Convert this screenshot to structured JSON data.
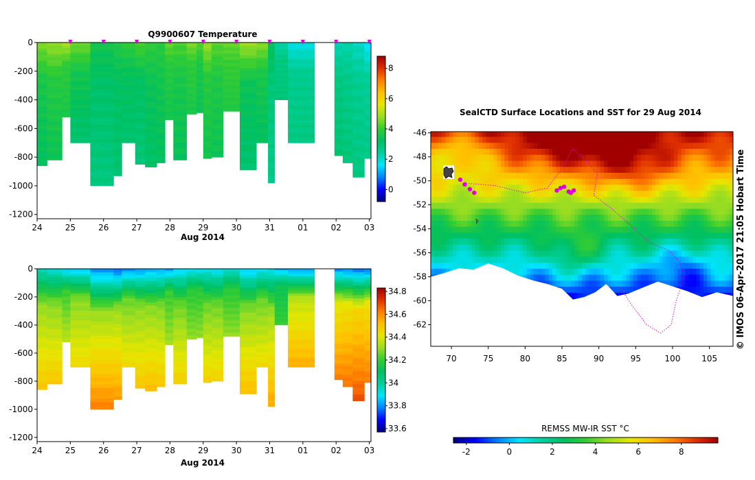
{
  "colors": {
    "jet": [
      "#00007f",
      "#0000ff",
      "#0080ff",
      "#00e5ff",
      "#00d0a0",
      "#00c060",
      "#33cc33",
      "#99dd22",
      "#e6e600",
      "#ffc000",
      "#ff7f00",
      "#e03000",
      "#a00000"
    ],
    "profile_marker": "#e000e0",
    "track": "#e000e0",
    "land": "#ffffff"
  },
  "chart_data": [
    {
      "type": "heatmap",
      "title": "Q9900607  Temperature",
      "xlabel": "Aug 2014",
      "ylabel": "",
      "x_ticks": [
        "24",
        "25",
        "26",
        "27",
        "28",
        "29",
        "30",
        "31",
        "01",
        "02",
        "03"
      ],
      "y_ticks": [
        "0",
        "-200",
        "-400",
        "-600",
        "-800",
        "-1000",
        "-1200"
      ],
      "ylim": [
        -1230,
        0
      ],
      "xlim": [
        24,
        34.05
      ],
      "colorbar": {
        "min": -0.8,
        "max": 8.8,
        "ticks": [
          "0",
          "2",
          "4",
          "6",
          "8"
        ]
      },
      "profile_markers_x": [
        25,
        26,
        27,
        28,
        29,
        30,
        31,
        32,
        33,
        34
      ],
      "profiles": [
        {
          "x0": 24.0,
          "x1": 24.3,
          "depth": 860,
          "surface": 4.6,
          "mid": 3.6,
          "deep": 3.2
        },
        {
          "x0": 24.3,
          "x1": 24.75,
          "depth": 820,
          "surface": 4.8,
          "mid": 3.8,
          "deep": 3.4
        },
        {
          "x0": 24.75,
          "x1": 25.0,
          "depth": 520,
          "surface": 5.0,
          "mid": 3.9,
          "deep": 3.6
        },
        {
          "x0": 25.0,
          "x1": 25.6,
          "depth": 700,
          "surface": 4.5,
          "mid": 3.5,
          "deep": 3.0
        },
        {
          "x0": 25.6,
          "x1": 26.3,
          "depth": 1000,
          "surface": 3.5,
          "mid": 3.1,
          "deep": 2.8
        },
        {
          "x0": 26.3,
          "x1": 26.55,
          "depth": 930,
          "surface": 3.7,
          "mid": 3.2,
          "deep": 3.0
        },
        {
          "x0": 26.55,
          "x1": 26.95,
          "depth": 700,
          "surface": 3.9,
          "mid": 3.3,
          "deep": 3.0
        },
        {
          "x0": 26.95,
          "x1": 27.25,
          "depth": 850,
          "surface": 4.2,
          "mid": 3.2,
          "deep": 2.9
        },
        {
          "x0": 27.25,
          "x1": 27.6,
          "depth": 870,
          "surface": 3.9,
          "mid": 3.4,
          "deep": 3.1
        },
        {
          "x0": 27.6,
          "x1": 27.85,
          "depth": 840,
          "surface": 3.8,
          "mid": 3.5,
          "deep": 3.2
        },
        {
          "x0": 27.85,
          "x1": 28.1,
          "depth": 540,
          "surface": 4.4,
          "mid": 3.8,
          "deep": 3.5
        },
        {
          "x0": 28.1,
          "x1": 28.5,
          "depth": 820,
          "surface": 4.2,
          "mid": 3.6,
          "deep": 3.3
        },
        {
          "x0": 28.5,
          "x1": 28.8,
          "depth": 500,
          "surface": 4.6,
          "mid": 3.9,
          "deep": 3.6
        },
        {
          "x0": 28.8,
          "x1": 29.0,
          "depth": 490,
          "surface": 4.3,
          "mid": 3.6,
          "deep": 3.4
        },
        {
          "x0": 29.0,
          "x1": 29.25,
          "depth": 810,
          "surface": 4.8,
          "mid": 3.8,
          "deep": 3.5
        },
        {
          "x0": 29.25,
          "x1": 29.6,
          "depth": 800,
          "surface": 4.3,
          "mid": 3.7,
          "deep": 3.4
        },
        {
          "x0": 29.6,
          "x1": 30.1,
          "depth": 480,
          "surface": 4.4,
          "mid": 4.0,
          "deep": 3.7
        },
        {
          "x0": 30.1,
          "x1": 30.6,
          "depth": 890,
          "surface": 4.9,
          "mid": 3.4,
          "deep": 3.0
        },
        {
          "x0": 30.6,
          "x1": 30.95,
          "depth": 700,
          "surface": 4.7,
          "mid": 3.6,
          "deep": 3.2
        },
        {
          "x0": 30.95,
          "x1": 31.15,
          "depth": 980,
          "surface": 3.3,
          "mid": 2.9,
          "deep": 2.7
        },
        {
          "x0": 31.15,
          "x1": 31.55,
          "depth": 400,
          "surface": 2.3,
          "mid": 2.8,
          "deep": 2.9
        },
        {
          "x0": 31.55,
          "x1": 32.35,
          "depth": 700,
          "surface": 1.8,
          "mid": 2.6,
          "deep": 2.8
        },
        {
          "x0": 32.95,
          "x1": 33.2,
          "depth": 790,
          "surface": 2.2,
          "mid": 2.8,
          "deep": 3.0
        },
        {
          "x0": 33.2,
          "x1": 33.5,
          "depth": 840,
          "surface": 2.3,
          "mid": 2.7,
          "deep": 2.9
        },
        {
          "x0": 33.5,
          "x1": 33.85,
          "depth": 940,
          "surface": 2.1,
          "mid": 2.6,
          "deep": 2.8
        },
        {
          "x0": 33.85,
          "x1": 34.05,
          "depth": 810,
          "surface": 1.6,
          "mid": 2.5,
          "deep": 2.7
        }
      ]
    },
    {
      "type": "heatmap",
      "title": "",
      "xlabel": "Aug 2014",
      "ylabel": "",
      "x_ticks": [
        "24",
        "25",
        "26",
        "27",
        "28",
        "29",
        "30",
        "31",
        "01",
        "02",
        "03"
      ],
      "y_ticks": [
        "0",
        "-200",
        "-400",
        "-600",
        "-800",
        "-1000",
        "-1200"
      ],
      "ylim": [
        -1230,
        0
      ],
      "xlim": [
        24,
        34.05
      ],
      "colorbar": {
        "min": 33.57,
        "max": 34.83,
        "ticks": [
          "33.6",
          "33.8",
          "34",
          "34.2",
          "34.4",
          "34.6",
          "34.8"
        ]
      },
      "profiles": [
        {
          "x0": 24.0,
          "x1": 24.3,
          "depth": 860,
          "surface": 33.95,
          "mid": 34.3,
          "deep": 34.5
        },
        {
          "x0": 24.3,
          "x1": 24.75,
          "depth": 820,
          "surface": 33.92,
          "mid": 34.28,
          "deep": 34.5
        },
        {
          "x0": 24.75,
          "x1": 25.0,
          "depth": 520,
          "surface": 33.85,
          "mid": 34.2,
          "deep": 34.35
        },
        {
          "x0": 25.0,
          "x1": 25.6,
          "depth": 700,
          "surface": 33.85,
          "mid": 34.28,
          "deep": 34.45
        },
        {
          "x0": 25.6,
          "x1": 26.3,
          "depth": 1000,
          "surface": 33.78,
          "mid": 34.3,
          "deep": 34.62
        },
        {
          "x0": 26.3,
          "x1": 26.55,
          "depth": 930,
          "surface": 33.75,
          "mid": 34.3,
          "deep": 34.58
        },
        {
          "x0": 26.55,
          "x1": 26.95,
          "depth": 700,
          "surface": 33.78,
          "mid": 34.25,
          "deep": 34.45
        },
        {
          "x0": 26.95,
          "x1": 27.25,
          "depth": 850,
          "surface": 33.8,
          "mid": 34.28,
          "deep": 34.5
        },
        {
          "x0": 27.25,
          "x1": 27.6,
          "depth": 870,
          "surface": 33.82,
          "mid": 34.28,
          "deep": 34.52
        },
        {
          "x0": 27.6,
          "x1": 27.85,
          "depth": 840,
          "surface": 33.82,
          "mid": 34.27,
          "deep": 34.5
        },
        {
          "x0": 27.85,
          "x1": 28.1,
          "depth": 540,
          "surface": 33.8,
          "mid": 34.2,
          "deep": 34.32
        },
        {
          "x0": 28.1,
          "x1": 28.5,
          "depth": 820,
          "surface": 33.86,
          "mid": 34.25,
          "deep": 34.48
        },
        {
          "x0": 28.5,
          "x1": 28.8,
          "depth": 500,
          "surface": 33.88,
          "mid": 34.18,
          "deep": 34.3
        },
        {
          "x0": 28.8,
          "x1": 29.0,
          "depth": 490,
          "surface": 33.88,
          "mid": 34.18,
          "deep": 34.3
        },
        {
          "x0": 29.0,
          "x1": 29.25,
          "depth": 810,
          "surface": 33.9,
          "mid": 34.25,
          "deep": 34.47
        },
        {
          "x0": 29.25,
          "x1": 29.6,
          "depth": 800,
          "surface": 33.88,
          "mid": 34.25,
          "deep": 34.47
        },
        {
          "x0": 29.6,
          "x1": 30.1,
          "depth": 480,
          "surface": 33.92,
          "mid": 34.18,
          "deep": 34.3
        },
        {
          "x0": 30.1,
          "x1": 30.6,
          "depth": 890,
          "surface": 33.85,
          "mid": 34.27,
          "deep": 34.52
        },
        {
          "x0": 30.6,
          "x1": 30.95,
          "depth": 700,
          "surface": 33.88,
          "mid": 34.25,
          "deep": 34.45
        },
        {
          "x0": 30.95,
          "x1": 31.15,
          "depth": 980,
          "surface": 33.9,
          "mid": 34.3,
          "deep": 34.56
        },
        {
          "x0": 31.15,
          "x1": 31.55,
          "depth": 400,
          "surface": 33.82,
          "mid": 34.12,
          "deep": 34.2
        },
        {
          "x0": 31.55,
          "x1": 32.35,
          "depth": 700,
          "surface": 33.8,
          "mid": 34.35,
          "deep": 34.55
        },
        {
          "x0": 32.95,
          "x1": 33.2,
          "depth": 790,
          "surface": 33.78,
          "mid": 34.4,
          "deep": 34.62
        },
        {
          "x0": 33.2,
          "x1": 33.5,
          "depth": 840,
          "surface": 33.78,
          "mid": 34.42,
          "deep": 34.64
        },
        {
          "x0": 33.5,
          "x1": 33.85,
          "depth": 940,
          "surface": 33.76,
          "mid": 34.45,
          "deep": 34.68
        },
        {
          "x0": 33.85,
          "x1": 34.05,
          "depth": 810,
          "surface": 33.75,
          "mid": 34.42,
          "deep": 34.63
        }
      ]
    },
    {
      "type": "heatmap",
      "title": "SealCTD Surface Locations and SST for 29 Aug 2014",
      "xlabel": "",
      "ylabel": "",
      "x_ticks": [
        "70",
        "75",
        "80",
        "85",
        "90",
        "95",
        "100",
        "105"
      ],
      "y_ticks": [
        "-46",
        "-48",
        "-50",
        "-52",
        "-54",
        "-56",
        "-58",
        "-60",
        "-62"
      ],
      "xlim": [
        67.2,
        108.2
      ],
      "ylim": [
        -63.8,
        -45.9
      ],
      "colorbar": {
        "label": "REMSS MW-IR SST °C",
        "min": -2.6,
        "max": 9.7,
        "ticks": [
          "-2",
          "0",
          "2",
          "4",
          "6",
          "8"
        ]
      },
      "surface_locations": [
        {
          "lon": 71.2,
          "lat": -49.9
        },
        {
          "lon": 71.8,
          "lat": -50.3
        },
        {
          "lon": 72.5,
          "lat": -50.7
        },
        {
          "lon": 73.1,
          "lat": -51.0
        },
        {
          "lon": 84.3,
          "lat": -50.8
        },
        {
          "lon": 84.8,
          "lat": -50.6
        },
        {
          "lon": 85.3,
          "lat": -50.5
        },
        {
          "lon": 85.9,
          "lat": -50.9
        },
        {
          "lon": 86.2,
          "lat": -51.0
        },
        {
          "lon": 86.6,
          "lat": -50.8
        }
      ],
      "track": [
        [
          72.0,
          -50.2
        ],
        [
          76,
          -50.4
        ],
        [
          80,
          -51.0
        ],
        [
          83,
          -50.6
        ],
        [
          85,
          -49.0
        ],
        [
          86.5,
          -47.3
        ],
        [
          88.5,
          -48.5
        ],
        [
          89.8,
          -49.4
        ],
        [
          89.3,
          -51.2
        ],
        [
          91.5,
          -52.2
        ],
        [
          94.5,
          -53.8
        ],
        [
          97,
          -55.2
        ],
        [
          99.5,
          -55.8
        ],
        [
          101,
          -56.8
        ],
        [
          101.5,
          -58.2
        ],
        [
          100.5,
          -60.0
        ],
        [
          99.8,
          -62.0
        ],
        [
          98.4,
          -62.7
        ],
        [
          96.5,
          -62.0
        ],
        [
          94.5,
          -60.4
        ],
        [
          93,
          -59.0
        ]
      ],
      "credit": "© IMOS 06-Apr-2017 21:05 Hobart Time"
    }
  ]
}
